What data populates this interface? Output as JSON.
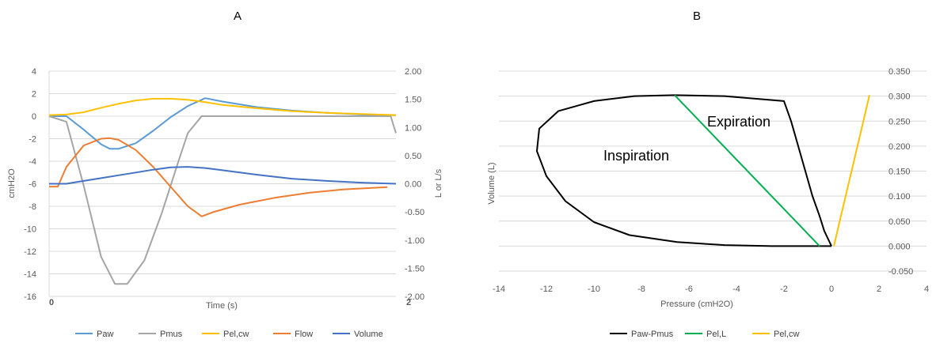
{
  "chart_data": [
    {
      "panel": "A",
      "type": "line",
      "title": "A",
      "xlabel": "Time (s)",
      "ylabel": "cmH2O",
      "y2label": "L or L/s",
      "xlim": [
        0,
        2
      ],
      "ylim": [
        -16,
        4
      ],
      "y2lim": [
        -2.0,
        2.0
      ],
      "x_ticks": [
        "0",
        "2"
      ],
      "y_ticks": [
        "4",
        "2",
        "0",
        "-2",
        "-4",
        "-6",
        "-8",
        "-10",
        "-12",
        "-14",
        "-16"
      ],
      "y2_ticks": [
        "2.00",
        "1.50",
        "1.00",
        "0.50",
        "0.00",
        "-0.50",
        "-1.00",
        "-1.50",
        "-2.00"
      ],
      "grid": "horizontal",
      "legend": "bottom",
      "series": [
        {
          "name": "Paw",
          "color": "#5B9BD5",
          "axis": "left",
          "x": [
            0,
            0.1,
            0.2,
            0.3,
            0.35,
            0.4,
            0.5,
            0.6,
            0.7,
            0.8,
            0.9,
            1.0,
            1.2,
            1.4,
            1.6,
            1.8,
            1.95
          ],
          "y": [
            0,
            0,
            -1.2,
            -2.5,
            -2.9,
            -2.9,
            -2.4,
            -1.3,
            -0.1,
            0.9,
            1.6,
            1.3,
            0.8,
            0.5,
            0.3,
            0.15,
            0.1
          ]
        },
        {
          "name": "Pmus",
          "color": "#A5A5A5",
          "axis": "left",
          "x": [
            0,
            0.1,
            0.2,
            0.3,
            0.38,
            0.45,
            0.55,
            0.65,
            0.75,
            0.8,
            0.88,
            1.0,
            1.5,
            1.97,
            2.0
          ],
          "y": [
            0,
            -0.5,
            -6.2,
            -12.5,
            -14.9,
            -14.9,
            -12.8,
            -8.6,
            -3.8,
            -1.5,
            0,
            0,
            0,
            0,
            -1.5
          ]
        },
        {
          "name": "Pel,cw",
          "color": "#FFC000",
          "axis": "left",
          "x": [
            0,
            0.1,
            0.2,
            0.3,
            0.4,
            0.5,
            0.6,
            0.7,
            0.8,
            0.9,
            1.0,
            1.2,
            1.4,
            1.6,
            1.8,
            2.0
          ],
          "y": [
            0.1,
            0.15,
            0.35,
            0.75,
            1.1,
            1.4,
            1.55,
            1.55,
            1.45,
            1.25,
            1.0,
            0.7,
            0.45,
            0.3,
            0.2,
            0.1
          ]
        },
        {
          "name": "Flow",
          "color": "#ED7D31",
          "axis": "right",
          "x": [
            0,
            0.05,
            0.1,
            0.2,
            0.3,
            0.35,
            0.4,
            0.5,
            0.6,
            0.7,
            0.8,
            0.88,
            0.95,
            1.1,
            1.3,
            1.5,
            1.7,
            1.95
          ],
          "y": [
            -0.05,
            -0.05,
            0.3,
            0.68,
            0.8,
            0.81,
            0.78,
            0.6,
            0.3,
            -0.05,
            -0.4,
            -0.58,
            -0.5,
            -0.37,
            -0.25,
            -0.16,
            -0.1,
            -0.06
          ]
        },
        {
          "name": "Volume",
          "color": "#4472C4",
          "axis": "right",
          "x": [
            0,
            0.1,
            0.2,
            0.3,
            0.4,
            0.5,
            0.6,
            0.7,
            0.8,
            0.9,
            1.0,
            1.2,
            1.4,
            1.6,
            1.8,
            2.0
          ],
          "y": [
            0,
            0,
            0.05,
            0.1,
            0.15,
            0.2,
            0.25,
            0.29,
            0.3,
            0.28,
            0.24,
            0.16,
            0.09,
            0.05,
            0.02,
            0
          ]
        }
      ]
    },
    {
      "panel": "B",
      "type": "scatter",
      "title": "B",
      "xlabel": "Pressure (cmH2O)",
      "ylabel": "Volume (L)",
      "xlim": [
        -14,
        4
      ],
      "y2lim": [
        -0.05,
        0.35
      ],
      "x_ticks": [
        "-14",
        "-12",
        "-10",
        "-8",
        "-6",
        "-4",
        "-2",
        "0",
        "2",
        "4"
      ],
      "y2_ticks": [
        "0.350",
        "0.300",
        "0.250",
        "0.200",
        "0.150",
        "0.100",
        "0.050",
        "0.000",
        "-0.050"
      ],
      "grid": "horizontal",
      "legend": "bottom",
      "annotations": [
        "Expiration",
        "Inspiration"
      ],
      "series": [
        {
          "name": "Paw-Pmus",
          "color": "#000000",
          "x": [
            0,
            -0.5,
            -2.5,
            -4.5,
            -6.5,
            -8.5,
            -10,
            -11.2,
            -12,
            -12.4,
            -12.3,
            -11.5,
            -10,
            -8.3,
            -6.6,
            -4.5,
            -2,
            -1.7,
            -1.4,
            -1.1,
            -0.8,
            -0.5,
            -0.3,
            -0.1,
            0
          ],
          "y": [
            0,
            0,
            0,
            0.002,
            0.008,
            0.022,
            0.048,
            0.09,
            0.14,
            0.19,
            0.235,
            0.27,
            0.29,
            0.3,
            0.302,
            0.3,
            0.29,
            0.25,
            0.2,
            0.15,
            0.1,
            0.06,
            0.03,
            0.01,
            0
          ]
        },
        {
          "name": "Pel,L",
          "color": "#00B050",
          "x": [
            -6.6,
            -0.5
          ],
          "y": [
            0.302,
            0
          ]
        },
        {
          "name": "Pel,cw",
          "color": "#FFC000",
          "x": [
            0.1,
            1.6
          ],
          "y": [
            0,
            0.302
          ]
        }
      ]
    }
  ]
}
